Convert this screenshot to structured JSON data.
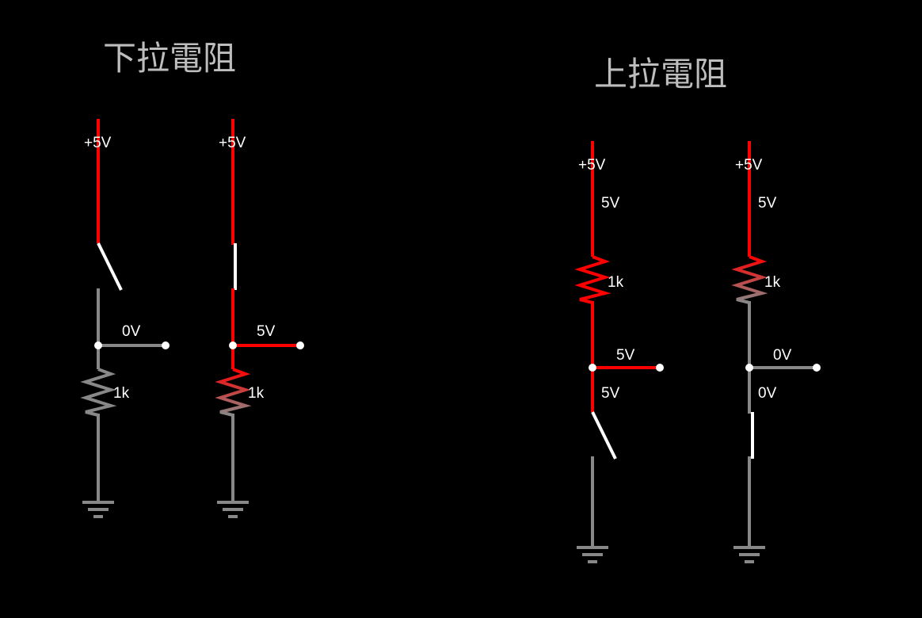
{
  "titles": {
    "pull_down": "下拉電阻",
    "pull_up": "上拉電阻"
  },
  "colors": {
    "background": "#000000",
    "live_wire": "#ff0000",
    "dead_wire": "#888888",
    "switch": "#ffffff",
    "title": "#bdbdbd"
  },
  "circuits": {
    "pd_open": {
      "supply": "+5V",
      "output": "0V",
      "resistor": "1k",
      "switch_state": "open"
    },
    "pd_closed": {
      "supply": "+5V",
      "output": "5V",
      "resistor": "1k",
      "switch_state": "closed"
    },
    "pu_open": {
      "supply": "+5V",
      "top_voltage": "5V",
      "resistor": "1k",
      "output": "5V",
      "node_voltage": "5V",
      "switch_state": "open"
    },
    "pu_closed": {
      "supply": "+5V",
      "top_voltage": "5V",
      "resistor": "1k",
      "output": "0V",
      "node_voltage": "0V",
      "switch_state": "closed"
    }
  }
}
